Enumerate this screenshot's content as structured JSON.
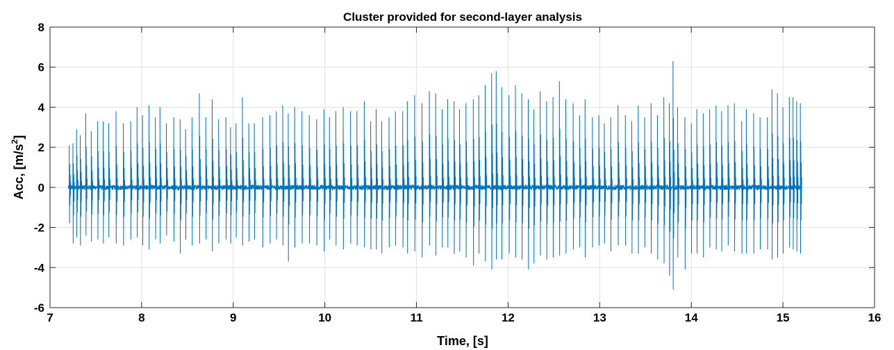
{
  "chart_data": {
    "type": "line",
    "title": "Cluster provided for second-layer analysis",
    "xlabel": "Time, [s]",
    "ylabel": "Acc, [m/s",
    "ylabel_sup": "2",
    "ylabel_close": "]",
    "xlim": [
      7,
      16
    ],
    "ylim": [
      -6,
      8
    ],
    "xticks": [
      7,
      8,
      9,
      10,
      11,
      12,
      13,
      14,
      15,
      16
    ],
    "yticks": [
      -6,
      -4,
      -2,
      0,
      2,
      4,
      6,
      8
    ],
    "grid": true,
    "series_color": "#0072BD",
    "series": [
      {
        "signal_start": 7.2,
        "signal_end": 15.2,
        "baseline_noise": 0.12,
        "spike_peaks": [
          [
            7.21,
            2.1,
            -1.8
          ],
          [
            7.25,
            2.2,
            -2.8
          ],
          [
            7.29,
            2.9,
            -2.5
          ],
          [
            7.33,
            2.6,
            -2.9
          ],
          [
            7.39,
            3.7,
            -2.4
          ],
          [
            7.45,
            2.8,
            -2.7
          ],
          [
            7.52,
            3.3,
            -2.6
          ],
          [
            7.58,
            3.3,
            -2.8
          ],
          [
            7.64,
            3.2,
            -2.5
          ],
          [
            7.72,
            3.8,
            -2.8
          ],
          [
            7.8,
            3.2,
            -2.9
          ],
          [
            7.88,
            3.3,
            -2.6
          ],
          [
            7.95,
            4.0,
            -2.5
          ],
          [
            8.01,
            3.6,
            -2.9
          ],
          [
            8.08,
            4.1,
            -3.1
          ],
          [
            8.15,
            3.5,
            -2.6
          ],
          [
            8.2,
            4.0,
            -2.8
          ],
          [
            8.27,
            3.2,
            -2.4
          ],
          [
            8.35,
            3.5,
            -2.7
          ],
          [
            8.42,
            3.4,
            -3.3
          ],
          [
            8.48,
            2.9,
            -2.6
          ],
          [
            8.55,
            3.5,
            -2.9
          ],
          [
            8.63,
            4.7,
            -2.8
          ],
          [
            8.7,
            3.5,
            -2.6
          ],
          [
            8.77,
            4.4,
            -3.2
          ],
          [
            8.84,
            3.4,
            -2.8
          ],
          [
            8.92,
            3.5,
            -2.6
          ],
          [
            8.97,
            3.0,
            -2.8
          ],
          [
            9.03,
            3.2,
            -2.5
          ],
          [
            9.1,
            4.5,
            -2.9
          ],
          [
            9.17,
            3.2,
            -2.7
          ],
          [
            9.23,
            3.2,
            -2.6
          ],
          [
            9.32,
            3.5,
            -3.0
          ],
          [
            9.4,
            3.6,
            -2.8
          ],
          [
            9.47,
            3.8,
            -2.6
          ],
          [
            9.54,
            4.1,
            -2.9
          ],
          [
            9.6,
            3.7,
            -3.7
          ],
          [
            9.67,
            4.0,
            -3.0
          ],
          [
            9.75,
            3.8,
            -2.8
          ],
          [
            9.83,
            3.6,
            -2.8
          ],
          [
            9.91,
            3.4,
            -2.9
          ],
          [
            9.99,
            3.9,
            -3.2
          ],
          [
            10.05,
            3.5,
            -2.6
          ],
          [
            10.12,
            3.8,
            -2.9
          ],
          [
            10.2,
            4.0,
            -3.1
          ],
          [
            10.28,
            3.8,
            -2.8
          ],
          [
            10.35,
            3.8,
            -2.9
          ],
          [
            10.43,
            4.3,
            -3.0
          ],
          [
            10.5,
            3.3,
            -3.1
          ],
          [
            10.56,
            3.9,
            -3.1
          ],
          [
            10.62,
            3.3,
            -3.3
          ],
          [
            10.7,
            3.5,
            -3.0
          ],
          [
            10.77,
            3.8,
            -2.9
          ],
          [
            10.85,
            3.8,
            -3.0
          ],
          [
            10.9,
            4.3,
            -3.3
          ],
          [
            10.98,
            4.6,
            -3.2
          ],
          [
            11.06,
            4.2,
            -3.5
          ],
          [
            11.14,
            4.8,
            -2.9
          ],
          [
            11.21,
            4.7,
            -3.4
          ],
          [
            11.28,
            3.9,
            -3.0
          ],
          [
            11.34,
            4.4,
            -3.0
          ],
          [
            11.41,
            4.3,
            -3.3
          ],
          [
            11.47,
            3.9,
            -3.2
          ],
          [
            11.54,
            4.2,
            -3.5
          ],
          [
            11.62,
            4.4,
            -3.9
          ],
          [
            11.68,
            4.6,
            -3.3
          ],
          [
            11.75,
            5.1,
            -3.7
          ],
          [
            11.82,
            5.7,
            -4.1
          ],
          [
            11.87,
            5.8,
            -3.6
          ],
          [
            11.93,
            5.0,
            -3.6
          ],
          [
            12.01,
            4.6,
            -3.3
          ],
          [
            12.08,
            5.1,
            -3.5
          ],
          [
            12.15,
            4.7,
            -3.6
          ],
          [
            12.22,
            4.4,
            -4.1
          ],
          [
            12.28,
            3.9,
            -3.8
          ],
          [
            12.35,
            4.8,
            -3.4
          ],
          [
            12.42,
            4.3,
            -3.6
          ],
          [
            12.49,
            4.5,
            -3.5
          ],
          [
            12.56,
            5.3,
            -3.4
          ],
          [
            12.63,
            4.4,
            -3.3
          ],
          [
            12.71,
            4.2,
            -3.1
          ],
          [
            12.78,
            3.6,
            -3.0
          ],
          [
            12.84,
            4.4,
            -3.5
          ],
          [
            12.92,
            3.5,
            -3.0
          ],
          [
            12.99,
            3.6,
            -2.9
          ],
          [
            13.05,
            3.2,
            -2.8
          ],
          [
            13.12,
            3.5,
            -3.2
          ],
          [
            13.2,
            4.1,
            -2.9
          ],
          [
            13.28,
            3.6,
            -2.9
          ],
          [
            13.35,
            3.3,
            -3.3
          ],
          [
            13.42,
            4.1,
            -3.3
          ],
          [
            13.49,
            3.5,
            -3.0
          ],
          [
            13.56,
            4.2,
            -3.3
          ],
          [
            13.63,
            3.6,
            -3.6
          ],
          [
            13.7,
            4.5,
            -3.8
          ],
          [
            13.76,
            4.2,
            -4.4
          ],
          [
            13.8,
            6.3,
            -5.1
          ],
          [
            13.85,
            4.0,
            -3.5
          ],
          [
            13.93,
            3.5,
            -4.1
          ],
          [
            14.0,
            3.2,
            -3.3
          ],
          [
            14.06,
            3.9,
            -3.3
          ],
          [
            14.13,
            3.7,
            -3.5
          ],
          [
            14.2,
            3.9,
            -3.0
          ],
          [
            14.27,
            4.1,
            -3.1
          ],
          [
            14.33,
            3.8,
            -3.2
          ],
          [
            14.4,
            4.1,
            -2.9
          ],
          [
            14.47,
            4.2,
            -3.2
          ],
          [
            14.55,
            3.3,
            -3.3
          ],
          [
            14.6,
            3.9,
            -3.3
          ],
          [
            14.68,
            3.7,
            -3.3
          ],
          [
            14.75,
            3.5,
            -3.1
          ],
          [
            14.83,
            3.5,
            -3.1
          ],
          [
            14.88,
            4.9,
            -3.6
          ],
          [
            14.94,
            4.7,
            -3.5
          ],
          [
            15.0,
            4.0,
            -3.3
          ],
          [
            15.07,
            4.5,
            -3.0
          ],
          [
            15.11,
            4.5,
            -3.1
          ],
          [
            15.15,
            4.3,
            -3.2
          ],
          [
            15.19,
            4.2,
            -3.3
          ]
        ]
      }
    ]
  }
}
